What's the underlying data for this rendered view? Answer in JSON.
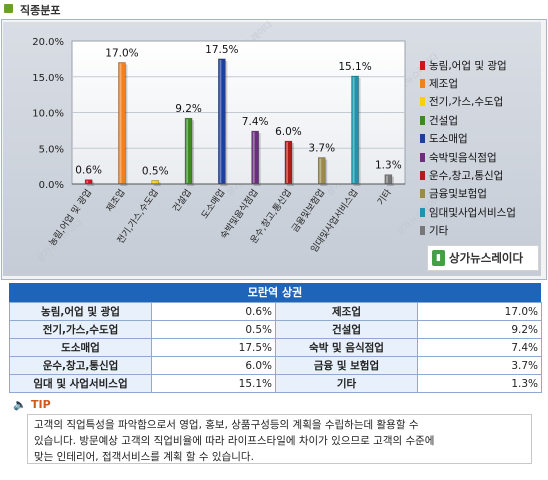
{
  "section": {
    "title": "직종분포"
  },
  "chart_data": {
    "type": "bar",
    "categories": [
      "농림,어업 및 광업",
      "제조업",
      "전기,가스,수도업",
      "건설업",
      "도소매업",
      "숙박및음식점업",
      "운수,창고,통신업",
      "금융및보험업",
      "임대및사업서비스업",
      "기타"
    ],
    "values": [
      0.6,
      17.0,
      0.5,
      9.2,
      17.5,
      7.4,
      6.0,
      3.7,
      15.1,
      1.3
    ],
    "value_labels": [
      "0.6%",
      "17.0%",
      "0.5%",
      "9.2%",
      "17.5%",
      "7.4%",
      "6.0%",
      "3.7%",
      "15.1%",
      "1.3%"
    ],
    "colors": [
      "#d0141c",
      "#f08020",
      "#f4d010",
      "#3c8a22",
      "#1f3f9c",
      "#6a2e7e",
      "#b01c1c",
      "#9c8a4a",
      "#1f93ab",
      "#777777"
    ],
    "yticks": [
      "20.0%",
      "15.0%",
      "10.0%",
      "5.0%",
      "0.0%"
    ],
    "ylim": [
      0,
      20
    ],
    "legend": [
      "농림,어업 및 광업",
      "제조업",
      "전기,가스,수도업",
      "건설업",
      "도소매업",
      "숙박및음식점업",
      "운수,창고,통신업",
      "금융및보험업",
      "임대및사업서비스업",
      "기타"
    ],
    "legend_position": "right",
    "grid": true
  },
  "brand": {
    "label": "상가뉴스레이다",
    "icon": "store-brand-icon",
    "watermark": "상가뉴스레이다"
  },
  "table": {
    "title": "모란역 상권",
    "rows": [
      {
        "left_label": "농림,어업 및 광업",
        "left_value": "0.6%",
        "right_label": "제조업",
        "right_value": "17.0%"
      },
      {
        "left_label": "전기,가스,수도업",
        "left_value": "0.5%",
        "right_label": "건설업",
        "right_value": "9.2%"
      },
      {
        "left_label": "도소매업",
        "left_value": "17.5%",
        "right_label": "숙박 및 음식점업",
        "right_value": "7.4%"
      },
      {
        "left_label": "운수,창고,통신업",
        "left_value": "6.0%",
        "right_label": "금융 및 보험업",
        "right_value": "3.7%"
      },
      {
        "left_label": "임대 및 사업서비스업",
        "left_value": "15.1%",
        "right_label": "기타",
        "right_value": "1.3%"
      }
    ]
  },
  "tip": {
    "icon": "speaker-icon",
    "title": "TIP",
    "lines": [
      "고객의 직업특성을 파악함으로서 영업, 홍보, 상품구성등의 계획을 수립하는데 활용할 수",
      "있습니다. 방문예상 고객의 직업비율에 따라 라이프스타일에 차이가 있으므로 고객의 수준에",
      "맞는 인테리어, 접객서비스를 계획 할 수 있습니다."
    ]
  }
}
